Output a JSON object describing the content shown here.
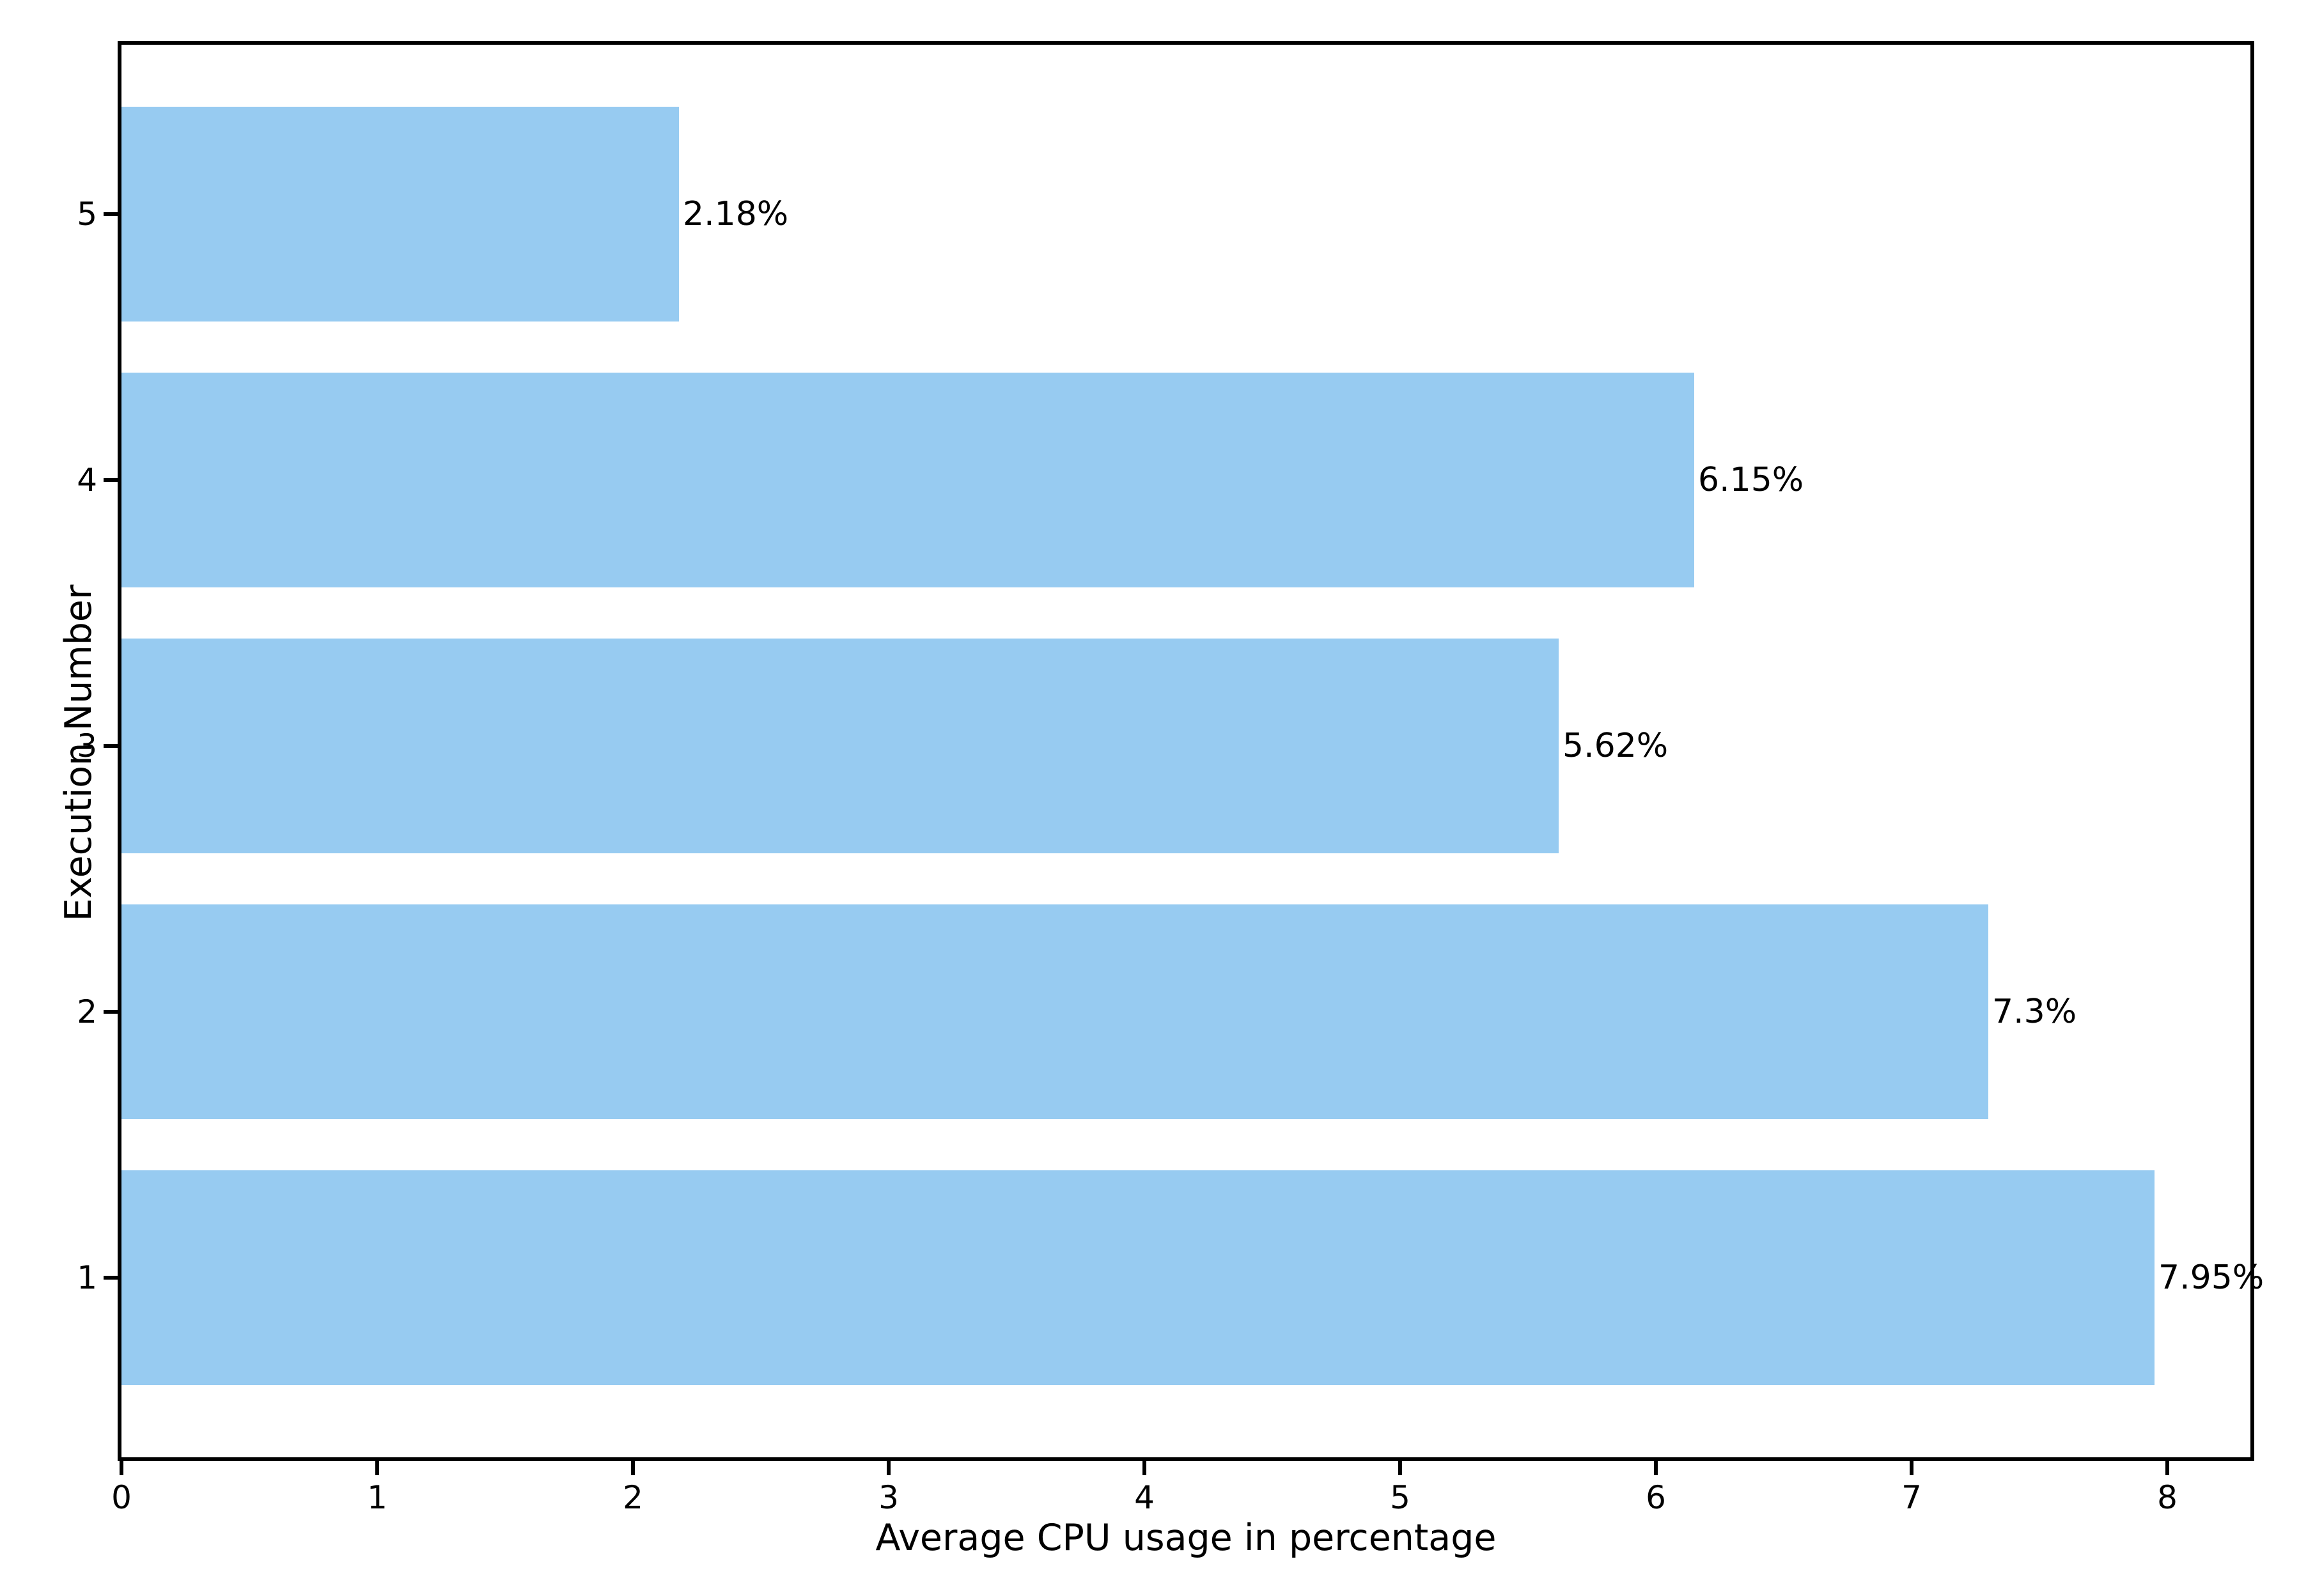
{
  "chart_data": {
    "type": "bar",
    "orientation": "horizontal",
    "title": "",
    "xlabel": "Average CPU usage in percentage",
    "ylabel": "Execution Number",
    "categories": [
      "1",
      "2",
      "3",
      "4",
      "5"
    ],
    "values": [
      7.95,
      7.3,
      5.62,
      6.15,
      2.18
    ],
    "bar_labels": [
      "7.95%",
      "7.3%",
      "5.62%",
      "6.15%",
      "2.18%"
    ],
    "xticks": [
      "0",
      "1",
      "2",
      "3",
      "4",
      "5",
      "6",
      "7",
      "8"
    ],
    "xtick_values": [
      0,
      1,
      2,
      3,
      4,
      5,
      6,
      7,
      8
    ],
    "xlim": [
      0,
      8.33
    ],
    "grid": false,
    "legend_position": "none",
    "colors": {
      "bar": "#97CBF1",
      "axis": "#000000",
      "text": "#000000",
      "background": "#FFFFFF"
    }
  }
}
